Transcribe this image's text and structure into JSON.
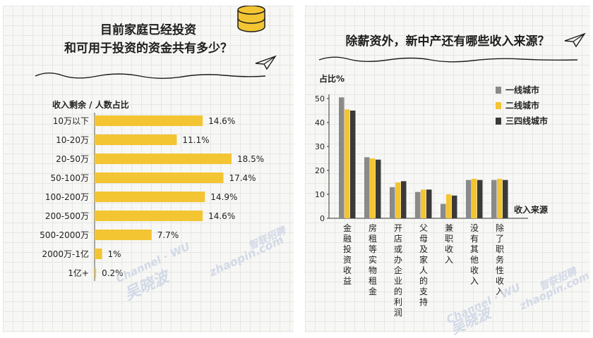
{
  "left_panel": {
    "title_lines": [
      "目前家庭已经投资",
      "和可用于投资的资金共有多少？"
    ],
    "header": "收入剩余 / 人数占比"
  },
  "right_panel": {
    "title": "除薪资外，新中产还有哪些收入来源？"
  },
  "watermarks": {
    "channel_text": "Channel · WU",
    "brand_cn": "吴晓波",
    "zhaopin_cn": "智联招聘",
    "zhaopin_en": "zhaopin.com"
  },
  "colors": {
    "yellow": "#f3c533",
    "gray": "#8a8a8a",
    "dark": "#3a3a3a"
  },
  "chart_data": [
    {
      "type": "bar",
      "orientation": "horizontal",
      "categories": [
        "10万以下",
        "10-20万",
        "20-50万",
        "50-100万",
        "100-200万",
        "200-500万",
        "500-2000万",
        "2000万-1亿",
        "1亿+"
      ],
      "values": [
        14.6,
        11.1,
        18.5,
        17.4,
        14.9,
        14.6,
        7.7,
        1,
        0.2
      ],
      "value_labels": [
        "14.6%",
        "11.1%",
        "18.5%",
        "17.4%",
        "14.9%",
        "14.6%",
        "7.7%",
        "1%",
        "0.2%"
      ],
      "title": "",
      "xlim": [
        0,
        18.5
      ]
    },
    {
      "type": "bar",
      "orientation": "vertical",
      "ylabel": "占比%",
      "xlabel": "收入来源",
      "ylim": [
        0,
        50
      ],
      "yticks": [
        "0",
        "10",
        "20",
        "30",
        "40",
        "50"
      ],
      "grid": false,
      "legend_position": "top-right",
      "categories": [
        "金融投资收益",
        "房租等实物租金",
        "开店或办企业的利润",
        "父母及家人的支持",
        "兼职收入",
        "没有其他收入",
        "除了职务性收入"
      ],
      "category_display": [
        "金融投资收益",
        "房租等实物租金",
        "开店或办企业的利润",
        "父母及家人的支持",
        "兼职收入",
        "没有其他收入",
        "除了职务性收入"
      ],
      "series": [
        {
          "name": "一线城市",
          "color": "#8a8a8a",
          "values": [
            50.5,
            25.5,
            13,
            11,
            6,
            16,
            16
          ]
        },
        {
          "name": "二线城市",
          "color": "#f3c533",
          "values": [
            45.5,
            25,
            15,
            12,
            10,
            16.5,
            16.5
          ]
        },
        {
          "name": "三四线城市",
          "color": "#3a3a3a",
          "values": [
            45,
            24.5,
            15.5,
            12,
            9.5,
            16,
            16
          ]
        }
      ]
    }
  ]
}
